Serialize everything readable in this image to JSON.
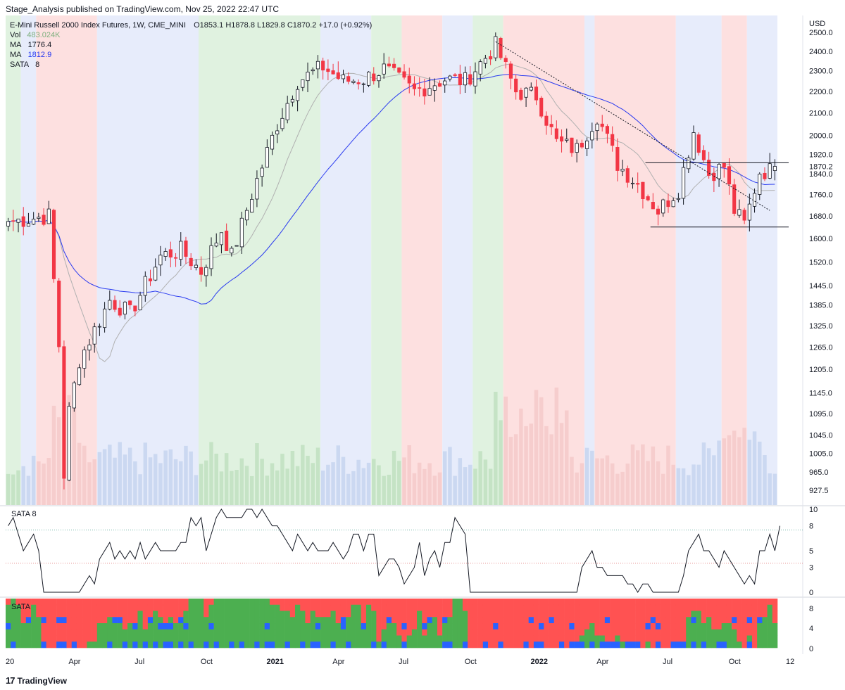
{
  "header": {
    "publish_line": "Stage_Analysis published on TradingView.com, Nov 25, 2022 22:47 UTC"
  },
  "legend": {
    "symbol_line": "E-Mini Russell 2000 Index Futures, 1W, CME_MINI",
    "ohlc": "O1853.1  H1878.8  L1829.8  C1870.2  +17.0 (+0.92%)",
    "vol_label": "Vol",
    "vol_value": "483.024K",
    "ma1_label": "MA",
    "ma1_value": "1776.4",
    "ma2_label": "MA",
    "ma2_value": "1812.9",
    "sata_label": "SATA",
    "sata_value": "8"
  },
  "colors": {
    "up_body": "#ffffff",
    "up_border": "#131722",
    "down_body": "#f23645",
    "ma_fast": "#b0b0b0",
    "ma_slow": "#2a3bf0",
    "bg_green": "#e0f2e0",
    "bg_red": "#fde0e0",
    "bg_blue": "#e7ecfb",
    "heat_green": "#4caf50",
    "heat_red": "#ff5252",
    "heat_blue": "#2962ff"
  },
  "footer": {
    "brand": "TradingView",
    "logo_glyph": "17"
  },
  "chart_data": [
    {
      "type": "candlestick",
      "title": "E-Mini Russell 2000 Index Futures, 1W, CME_MINI",
      "y_unit": "USD",
      "y_scale": "log",
      "ylim": [
        927.5,
        2500.0
      ],
      "y_ticks": [
        "2500.0",
        "2400.0",
        "2300.0",
        "2200.0",
        "2100.0",
        "2000.0",
        "1920.0",
        "1840.0",
        "1760.0",
        "1680.0",
        "1600.0",
        "1520.0",
        "1445.0",
        "1385.0",
        "1325.0",
        "1265.0",
        "1205.0",
        "1145.0",
        "1095.0",
        "1045.0",
        "1005.0",
        "965.0",
        "927.5"
      ],
      "price_labels": [
        "1870.2"
      ],
      "x_ticks": [
        "20",
        "Apr",
        "Jul",
        "Oct",
        "2021",
        "Apr",
        "Jul",
        "Oct",
        "2022",
        "Apr",
        "Jul",
        "Oct",
        "12"
      ],
      "x_tick_bars": [
        0,
        13,
        26,
        39,
        52,
        65,
        78,
        91,
        104,
        117,
        130,
        143,
        153
      ],
      "bar_count": 152,
      "key_points": [
        {
          "bar": 0,
          "close": 1660
        },
        {
          "bar": 8,
          "close": 1680
        },
        {
          "bar": 10,
          "close": 1270
        },
        {
          "bar": 11,
          "close": 960
        },
        {
          "bar": 12,
          "close": 1100
        },
        {
          "bar": 14,
          "close": 1230
        },
        {
          "bar": 20,
          "close": 1400
        },
        {
          "bar": 24,
          "close": 1360
        },
        {
          "bar": 30,
          "close": 1540
        },
        {
          "bar": 34,
          "close": 1560
        },
        {
          "bar": 38,
          "close": 1490
        },
        {
          "bar": 42,
          "close": 1630
        },
        {
          "bar": 44,
          "close": 1540
        },
        {
          "bar": 48,
          "close": 1760
        },
        {
          "bar": 53,
          "close": 2050
        },
        {
          "bar": 57,
          "close": 2250
        },
        {
          "bar": 62,
          "close": 2320
        },
        {
          "bar": 66,
          "close": 2250
        },
        {
          "bar": 70,
          "close": 2260
        },
        {
          "bar": 74,
          "close": 2310
        },
        {
          "bar": 80,
          "close": 2200
        },
        {
          "bar": 86,
          "close": 2260
        },
        {
          "bar": 90,
          "close": 2250
        },
        {
          "bar": 96,
          "close": 2430
        },
        {
          "bar": 100,
          "close": 2200
        },
        {
          "bar": 104,
          "close": 2180
        },
        {
          "bar": 108,
          "close": 1970
        },
        {
          "bar": 112,
          "close": 1940
        },
        {
          "bar": 116,
          "close": 2090
        },
        {
          "bar": 120,
          "close": 1880
        },
        {
          "bar": 124,
          "close": 1800
        },
        {
          "bar": 128,
          "close": 1700
        },
        {
          "bar": 132,
          "close": 1780
        },
        {
          "bar": 135,
          "close": 2020
        },
        {
          "bar": 138,
          "close": 1840
        },
        {
          "bar": 141,
          "close": 1870
        },
        {
          "bar": 143,
          "close": 1700
        },
        {
          "bar": 145,
          "close": 1650
        },
        {
          "bar": 148,
          "close": 1850
        },
        {
          "bar": 150,
          "close": 1853
        },
        {
          "bar": 151,
          "close": 1870.2
        }
      ],
      "resistance_level": 1885,
      "support_level": 1640,
      "trendline": {
        "from": {
          "bar": 96,
          "value": 2450
        },
        "to": {
          "bar": 150,
          "value": 1700
        }
      },
      "background_zones": [
        {
          "from": 0,
          "to": 3,
          "color": "bg_green"
        },
        {
          "from": 3,
          "to": 6,
          "color": "bg_blue"
        },
        {
          "from": 6,
          "to": 18,
          "color": "bg_red"
        },
        {
          "from": 18,
          "to": 38,
          "color": "bg_blue"
        },
        {
          "from": 38,
          "to": 62,
          "color": "bg_green"
        },
        {
          "from": 62,
          "to": 72,
          "color": "bg_blue"
        },
        {
          "from": 72,
          "to": 78,
          "color": "bg_green"
        },
        {
          "from": 78,
          "to": 86,
          "color": "bg_red"
        },
        {
          "from": 86,
          "to": 92,
          "color": "bg_blue"
        },
        {
          "from": 92,
          "to": 98,
          "color": "bg_green"
        },
        {
          "from": 98,
          "to": 114,
          "color": "bg_red"
        },
        {
          "from": 114,
          "to": 116,
          "color": "bg_blue"
        },
        {
          "from": 116,
          "to": 132,
          "color": "bg_red"
        },
        {
          "from": 132,
          "to": 141,
          "color": "bg_blue"
        },
        {
          "from": 141,
          "to": 146,
          "color": "bg_red"
        },
        {
          "from": 146,
          "to": 152,
          "color": "bg_blue"
        }
      ]
    },
    {
      "type": "line",
      "title": "SATA 8",
      "ylim": [
        0,
        10
      ],
      "y_ticks": [
        "10",
        "8",
        "5",
        "3",
        "0"
      ],
      "reference_lines": [
        7.5,
        3.5
      ],
      "values": [
        8,
        9,
        7,
        5,
        6,
        7,
        5,
        0,
        0,
        0,
        0,
        0,
        0,
        0,
        0,
        1,
        2,
        1,
        4,
        5,
        6,
        4,
        5,
        4,
        5,
        4,
        6,
        4,
        5,
        6,
        5,
        5,
        5,
        5,
        6,
        6,
        9,
        8,
        9,
        5,
        7,
        9,
        10,
        9,
        9,
        9,
        9,
        10,
        10,
        9,
        10,
        9,
        8,
        8,
        7,
        6,
        5,
        7,
        6,
        5,
        6,
        5,
        5,
        5,
        6,
        5,
        4,
        5,
        7,
        7,
        5,
        7,
        7,
        2,
        3,
        4,
        4,
        3,
        1,
        2,
        3,
        6,
        2,
        4,
        5,
        3,
        6,
        6,
        9,
        8,
        7,
        0,
        0,
        0,
        0,
        0,
        0,
        0,
        0,
        0,
        0,
        0,
        0,
        0,
        0,
        0,
        0,
        0,
        0,
        0,
        0,
        0,
        0,
        3,
        4,
        5,
        3,
        3,
        2,
        2,
        2,
        2,
        1,
        1,
        0,
        1,
        1,
        0,
        0,
        0,
        0,
        0,
        0,
        2,
        5,
        6,
        7,
        5,
        5,
        4,
        3,
        5,
        4,
        3,
        2,
        1,
        2,
        1,
        5,
        5,
        7,
        5,
        8
      ]
    },
    {
      "type": "heatmap",
      "title": "SATA",
      "y_ticks": [
        "8",
        "4",
        "0"
      ],
      "rows": 8,
      "columns": 152,
      "palette": [
        "heat_green",
        "heat_red",
        "heat_blue"
      ]
    }
  ]
}
